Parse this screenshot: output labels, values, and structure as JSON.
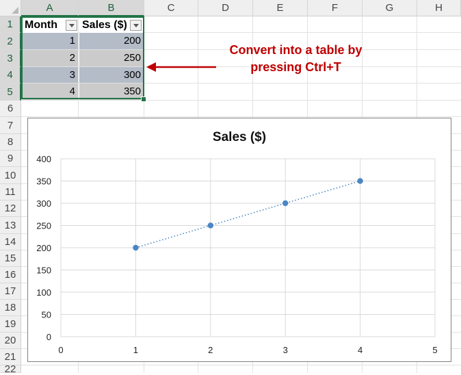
{
  "spreadsheet": {
    "columns": [
      "A",
      "B",
      "C",
      "D",
      "E",
      "F",
      "G",
      "H"
    ],
    "rows": [
      "1",
      "2",
      "3",
      "4",
      "5",
      "6",
      "7",
      "8",
      "9",
      "10",
      "11",
      "12",
      "13",
      "14",
      "15",
      "16",
      "17",
      "18",
      "19",
      "20",
      "21",
      "22"
    ],
    "table": {
      "headers": [
        "Month",
        "Sales ($)"
      ],
      "data": [
        {
          "month": "1",
          "sales": "200"
        },
        {
          "month": "2",
          "sales": "250"
        },
        {
          "month": "3",
          "sales": "300"
        },
        {
          "month": "4",
          "sales": "350"
        }
      ]
    },
    "annotation": {
      "line1": "Convert into a table by",
      "line2": "pressing Ctrl+T"
    }
  },
  "chart_data": {
    "type": "scatter",
    "title": "Sales ($)",
    "x": [
      1,
      2,
      3,
      4
    ],
    "y": [
      200,
      250,
      300,
      350
    ],
    "xlim": [
      0,
      5
    ],
    "ylim": [
      0,
      400
    ],
    "x_ticks": [
      0,
      1,
      2,
      3,
      4,
      5
    ],
    "y_ticks": [
      0,
      50,
      100,
      150,
      200,
      250,
      300,
      350,
      400
    ],
    "grid": true,
    "trendline": "linear dotted",
    "color": "#4a86c5"
  },
  "colors": {
    "selection": "#217346",
    "annotation": "#c00000",
    "table_band": "#b4bcc8"
  }
}
